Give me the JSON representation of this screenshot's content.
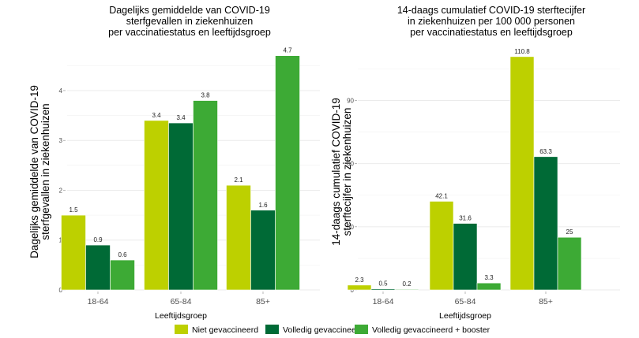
{
  "chart_data": [
    {
      "type": "bar",
      "title": [
        "Dagelijks gemiddelde van COVID-19",
        "sterfgevallen in ziekenhuizen",
        "per vaccinatiestatus en leeftijdsgroep"
      ],
      "xlabel": "Leeftijdsgroep",
      "ylabel": [
        "Dagelijks gemiddelde van COVID-19",
        "sterfgevallen in ziekenhuizen"
      ],
      "categories": [
        "18-64",
        "65-84",
        "85+"
      ],
      "yticks": [
        0,
        1,
        2,
        3,
        4
      ],
      "ylim": [
        0,
        4.9
      ],
      "grid": true,
      "series": [
        {
          "name": "Niet gevaccineerd",
          "values": [
            1.5,
            3.4,
            2.1
          ],
          "labels": [
            "1.5",
            "3.4",
            "2.1"
          ]
        },
        {
          "name": "Volledig gevaccineerd",
          "values": [
            0.9,
            3.35,
            1.6
          ],
          "labels": [
            "0.9",
            "3.4",
            "1.6"
          ]
        },
        {
          "name": "Volledig gevaccineerd + booster",
          "values": [
            0.6,
            3.8,
            4.7
          ],
          "labels": [
            "0.6",
            "3.8",
            "4.7"
          ]
        }
      ]
    },
    {
      "type": "bar",
      "title": [
        "14-daags cumulatief COVID-19 sterftecijfer",
        "in ziekenhuizen per 100 000 personen",
        "per vaccinatiestatus en leeftijdsgroep"
      ],
      "xlabel": "Leeftijdsgroep",
      "ylabel": [
        "14-daags cumulatief COVID-19",
        "sterftecijfer in ziekenhuizen"
      ],
      "categories": [
        "18-64",
        "65-84",
        "85+"
      ],
      "yticks": [
        0,
        30,
        60,
        90
      ],
      "ylim": [
        0,
        116
      ],
      "grid": true,
      "series": [
        {
          "name": "Niet gevaccineerd",
          "values": [
            2.3,
            42.1,
            110.8
          ],
          "labels": [
            "2.3",
            "42.1",
            "110.8"
          ]
        },
        {
          "name": "Volledig gevaccineerd",
          "values": [
            0.5,
            31.6,
            63.3
          ],
          "labels": [
            "0.5",
            "31.6",
            "63.3"
          ]
        },
        {
          "name": "Volledig gevaccineerd + booster",
          "values": [
            0.2,
            3.3,
            25
          ],
          "labels": [
            "0.2",
            "3.3",
            "25"
          ]
        }
      ]
    }
  ],
  "legend": {
    "position": "bottom",
    "items": [
      {
        "label": "Niet gevaccineerd",
        "color": "#bdd000"
      },
      {
        "label": "Volledig gevaccineerd",
        "color": "#006a36"
      },
      {
        "label": "Volledig gevaccineerd + booster",
        "color": "#3daa35"
      }
    ]
  }
}
